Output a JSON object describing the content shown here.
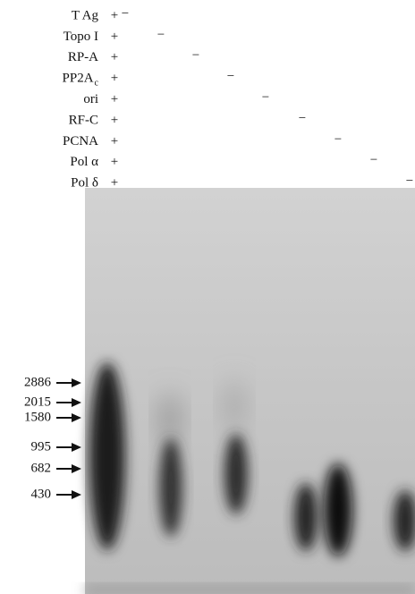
{
  "rows": [
    {
      "label": "T Ag",
      "plus": "+",
      "minus": "−"
    },
    {
      "label": "Topo I",
      "plus": "+",
      "minus": "−"
    },
    {
      "label": "RP-A",
      "plus": "+",
      "minus": "−"
    },
    {
      "label": "PP2A",
      "subscript": "c",
      "plus": "+",
      "minus": "−"
    },
    {
      "label": "ori",
      "plus": "+",
      "minus": "−"
    },
    {
      "label": "RF-C",
      "plus": "+",
      "minus": "−"
    },
    {
      "label": "PCNA",
      "plus": "+",
      "minus": "−"
    },
    {
      "label": "Pol α",
      "plus": "+",
      "minus": "−"
    },
    {
      "label": "Pol δ",
      "plus": "+",
      "minus": "−"
    }
  ],
  "markers": [
    "2886",
    "2015",
    "1580",
    "995",
    "682",
    "430"
  ]
}
